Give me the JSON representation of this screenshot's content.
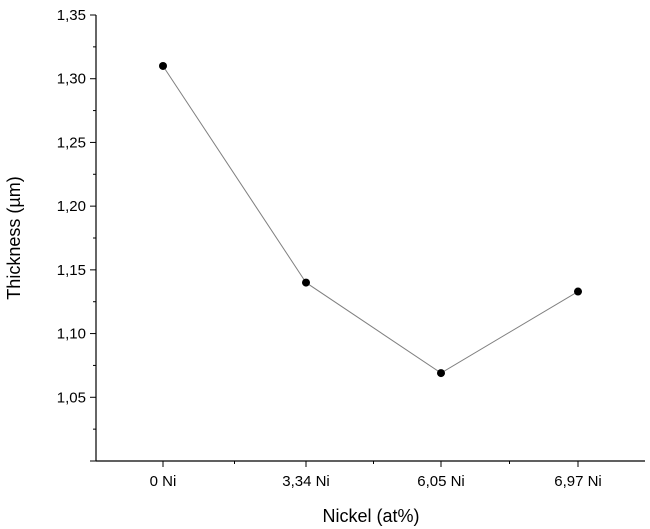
{
  "chart_data": {
    "type": "line",
    "categories": [
      "0 Ni",
      "3,34 Ni",
      "6,05 Ni",
      "6,97 Ni"
    ],
    "series": [
      {
        "values": [
          1.31,
          1.14,
          1.069,
          1.133
        ]
      }
    ],
    "xlabel": "Nickel (at%)",
    "ylabel": "Thickness (µm)",
    "ylim": [
      1.0,
      1.35
    ],
    "yticks": [
      {
        "value": 1.05,
        "label": "1,05"
      },
      {
        "value": 1.1,
        "label": "1,10"
      },
      {
        "value": 1.15,
        "label": "1,15"
      },
      {
        "value": 1.2,
        "label": "1,20"
      },
      {
        "value": 1.25,
        "label": "1,25"
      },
      {
        "value": 1.3,
        "label": "1,30"
      },
      {
        "value": 1.35,
        "label": "1,35"
      }
    ],
    "grid": false,
    "legend": "none",
    "line_color": "#808080",
    "marker_color": "#000000"
  }
}
